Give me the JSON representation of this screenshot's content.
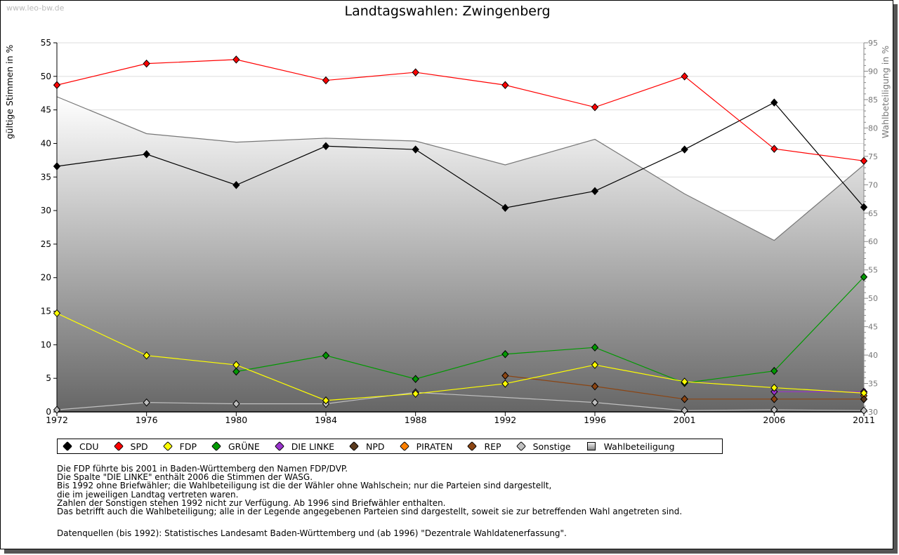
{
  "watermark": "www.leo-bw.de",
  "chart_data": {
    "type": "line",
    "title": "Landtagswahlen: Zwingenberg",
    "ylabel": "gültige Stimmen in %",
    "y2label": "Wahlbeteiligung in %",
    "ylim": [
      0,
      55
    ],
    "y2lim": [
      30,
      95
    ],
    "yticks": [
      "0",
      "5",
      "10",
      "15",
      "20",
      "25",
      "30",
      "35",
      "40",
      "45",
      "50",
      "55"
    ],
    "y2ticks": [
      "30",
      "35",
      "40",
      "45",
      "50",
      "55",
      "60",
      "65",
      "70",
      "75",
      "80",
      "85",
      "90",
      "95"
    ],
    "categories": [
      "1972",
      "1976",
      "1980",
      "1984",
      "1988",
      "1992",
      "1996",
      "2001",
      "2006",
      "2011"
    ],
    "grid": true,
    "legend_placement": "bottom",
    "series": [
      {
        "name": "CDU",
        "color": "#000000",
        "values": [
          36.6,
          38.4,
          33.8,
          39.6,
          39.1,
          30.4,
          32.9,
          39.1,
          46.1,
          30.5
        ]
      },
      {
        "name": "SPD",
        "color": "#ff0000",
        "values": [
          48.7,
          51.9,
          52.5,
          49.4,
          50.6,
          48.7,
          45.4,
          50.0,
          39.2,
          37.4
        ]
      },
      {
        "name": "FDP",
        "color": "#ffff00",
        "values": [
          14.7,
          8.4,
          7.0,
          1.7,
          2.7,
          4.2,
          7.0,
          4.5,
          3.6,
          2.8
        ]
      },
      {
        "name": "GRÜNE",
        "color": "#009900",
        "values": [
          null,
          null,
          6.0,
          8.4,
          4.9,
          8.6,
          9.6,
          4.3,
          6.1,
          20.1
        ]
      },
      {
        "name": "DIE LINKE",
        "color": "#9933cc",
        "values": [
          null,
          null,
          null,
          null,
          null,
          null,
          null,
          null,
          3.0,
          3.0
        ]
      },
      {
        "name": "NPD",
        "color": "#5a3a1e",
        "values": [
          null,
          null,
          null,
          null,
          null,
          null,
          null,
          null,
          null,
          1.9
        ]
      },
      {
        "name": "PIRATEN",
        "color": "#ff8000",
        "values": [
          null,
          null,
          null,
          null,
          null,
          null,
          null,
          null,
          null,
          2.4
        ]
      },
      {
        "name": "REP",
        "color": "#8b4513",
        "values": [
          null,
          null,
          null,
          null,
          null,
          5.4,
          3.8,
          1.9,
          1.9,
          1.9
        ]
      },
      {
        "name": "Sonstige",
        "color": "#c0c0c0",
        "values": [
          0.3,
          1.4,
          1.2,
          1.2,
          2.9,
          null,
          1.4,
          0.2,
          0.3,
          0.2
        ]
      }
    ],
    "turnout": {
      "name": "Wahlbeteiligung",
      "axis": "right",
      "values": [
        85.5,
        79.0,
        77.5,
        78.2,
        77.7,
        73.5,
        78.0,
        68.4,
        60.2,
        73.5
      ]
    }
  },
  "notes": [
    "Die FDP führte bis 2001 in Baden-Württemberg den Namen FDP/DVP.",
    "Die Spalte \"DIE LINKE\" enthält 2006 die Stimmen der WASG.",
    "Bis 1992 ohne Briefwähler; die Wahlbeteiligung ist die der Wähler ohne Wahlschein; nur die Parteien sind dargestellt,",
    "die im jeweiligen Landtag vertreten waren.",
    "Zahlen der Sonstigen stehen 1992 nicht zur Verfügung. Ab 1996 sind Briefwähler enthalten.",
    "Das betrifft auch die Wahlbeteiligung; alle in der Legende angegebenen Parteien sind dargestellt, soweit sie zur betreffenden Wahl angetreten sind."
  ],
  "source": "Datenquellen (bis 1992): Statistisches Landesamt Baden-Württemberg und (ab 1996) \"Dezentrale Wahldatenerfassung\"."
}
